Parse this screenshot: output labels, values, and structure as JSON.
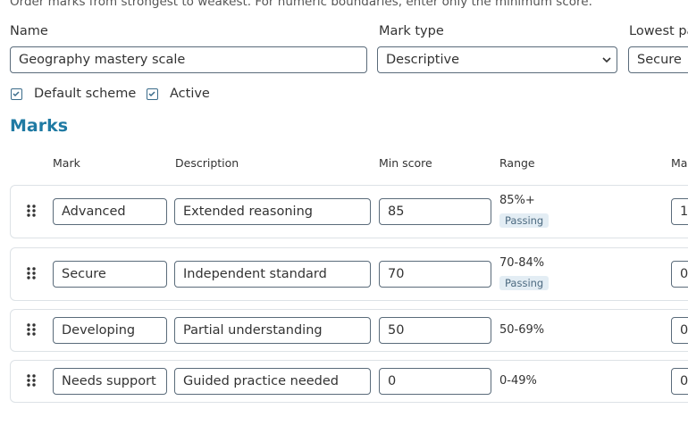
{
  "instructions": "Order marks from strongest to weakest. For numeric boundaries, enter only the minimum score.",
  "fields": {
    "name_label": "Name",
    "name_value": "Geography mastery scale",
    "type_label": "Mark type",
    "type_value": "Descriptive",
    "lowest_label": "Lowest pa",
    "lowest_value": "Secure"
  },
  "checkboxes": [
    "Default scheme",
    "Active"
  ],
  "section_title": "Marks",
  "table": {
    "headers": [
      "Mark",
      "Description",
      "Min score",
      "Range",
      "Ma"
    ],
    "rows": [
      {
        "mark": "Advanced",
        "description": "Extended reasoning",
        "min_score": 85,
        "range": "85%+",
        "badge": "Passing",
        "extra": "1"
      },
      {
        "mark": "Secure",
        "description": "Independent standard",
        "min_score": 70,
        "range": "70-84%",
        "badge": "Passing",
        "extra": "0"
      },
      {
        "mark": "Developing",
        "description": "Partial understanding",
        "min_score": 50,
        "range": "50-69%",
        "extra": "0"
      },
      {
        "mark": "Needs support",
        "description": "Guided practice needed",
        "min_score": 0,
        "range": "0-49%",
        "extra": "0"
      }
    ]
  }
}
